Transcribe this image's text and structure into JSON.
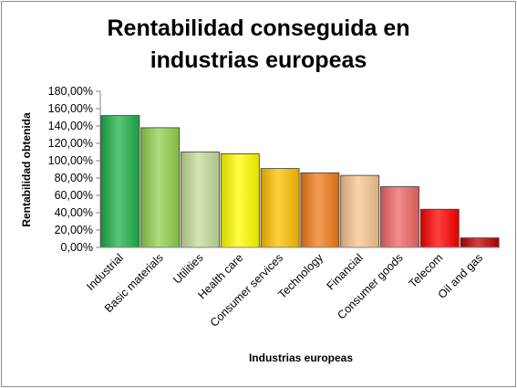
{
  "chart_data": {
    "type": "bar",
    "title_lines": [
      "Rentabilidad conseguida en",
      "industrias europeas"
    ],
    "xlabel": "Industrias europeas",
    "ylabel": "Rentabilidad obtenida",
    "categories": [
      "Industrial",
      "Basic materials",
      "Utilities",
      "Health care",
      "Consumer services",
      "Technology",
      "Financial",
      "Consumer goods",
      "Telecom",
      "Oil and gas"
    ],
    "values": [
      152,
      138,
      110,
      108,
      91,
      86,
      83,
      70,
      44,
      11
    ],
    "value_unit": "%",
    "ylim": [
      0,
      180
    ],
    "yticks": [
      "0,00%",
      "20,00%",
      "40,00%",
      "60,00%",
      "80,00%",
      "100,00%",
      "120,00%",
      "140,00%",
      "160,00%",
      "180,00%"
    ],
    "colors": [
      "#1fb24a",
      "#92d050",
      "#c4dd98",
      "#ffff00",
      "#ffc000",
      "#f07b1a",
      "#f9c690",
      "#f06666",
      "#ff0000",
      "#c00000"
    ],
    "grid": false,
    "legend": "none"
  }
}
